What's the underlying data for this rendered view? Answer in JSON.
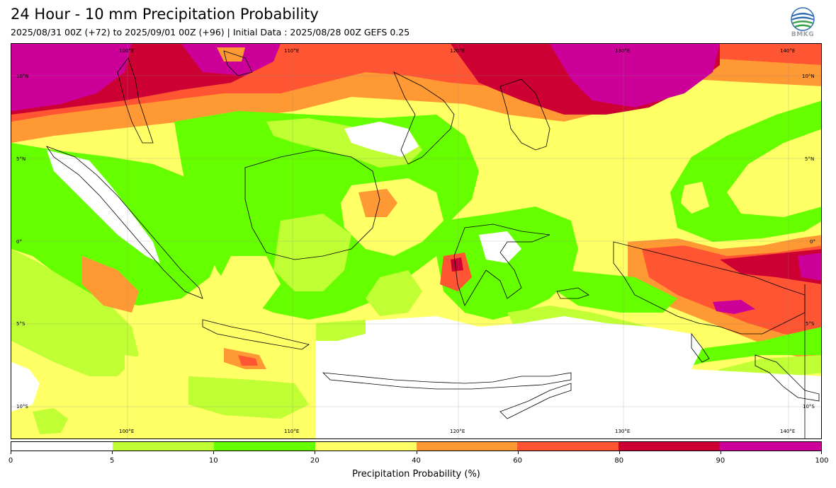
{
  "title": "24 Hour - 10 mm Precipitation Probability",
  "subtitle": "2025/08/31 00Z (+72) to 2025/09/01 00Z (+96) | Initial Data : 2025/08/28 00Z GEFS 0.25",
  "logo": {
    "text": "BMKG",
    "icon": "bmkg-logo-icon"
  },
  "map": {
    "region": "Indonesia",
    "grid": true,
    "lon_labels": [
      "100°E",
      "110°E",
      "120°E",
      "130°E",
      "140°E"
    ],
    "lat_labels": [
      "10°N",
      "5°N",
      "0°",
      "5°S",
      "10°S"
    ]
  },
  "colorbar": {
    "label": "Precipitation Probability (%)",
    "ticks": [
      "0",
      "5",
      "10",
      "20",
      "40",
      "60",
      "80",
      "90",
      "100"
    ],
    "colors": [
      "#ffffff",
      "#c0ff33",
      "#66ff00",
      "#ffff66",
      "#ff9933",
      "#ff5533",
      "#cc0033",
      "#cc0099"
    ]
  }
}
